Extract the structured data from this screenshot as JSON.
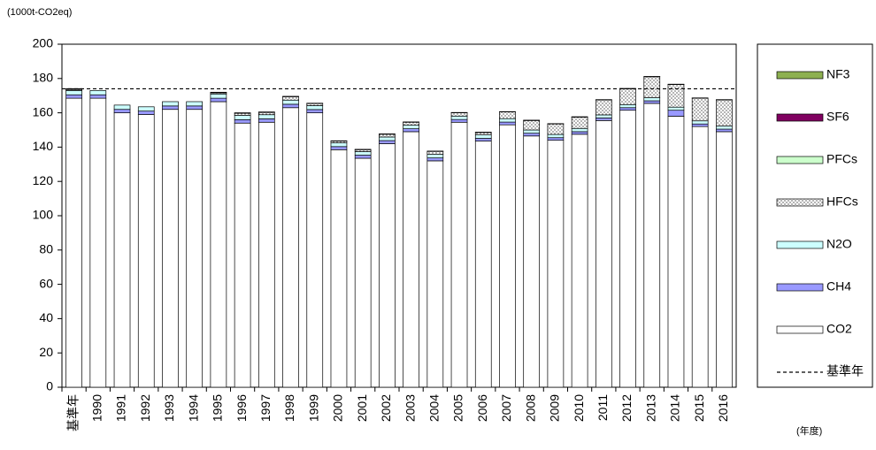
{
  "chart_data": {
    "type": "stacked_bar",
    "y_unit_label": "(1000t-CO2eq)",
    "x_unit_label": "(年度)",
    "categories": [
      "基準年",
      "1990",
      "1991",
      "1992",
      "1993",
      "1994",
      "1995",
      "1996",
      "1997",
      "1998",
      "1999",
      "2000",
      "2001",
      "2002",
      "2003",
      "2004",
      "2005",
      "2006",
      "2007",
      "2008",
      "2009",
      "2010",
      "2011",
      "2012",
      "2013",
      "2014",
      "2015",
      "2016"
    ],
    "series": [
      {
        "name": "CO2",
        "color": "#ffffff",
        "values": [
          168.5,
          168.5,
          160,
          159,
          162,
          162,
          166.5,
          154,
          154.5,
          163,
          160,
          138.5,
          133.5,
          142,
          149,
          132,
          154.5,
          143.5,
          153,
          146.5,
          144,
          147.5,
          155.5,
          161.5,
          165.5,
          158,
          152,
          149
        ]
      },
      {
        "name": "CH4",
        "color": "#9999ff",
        "values": [
          2,
          2,
          2,
          2,
          2,
          2,
          2,
          2,
          2,
          2,
          1.9,
          1.8,
          1.8,
          1.8,
          1.7,
          1.7,
          1.6,
          1.6,
          1.6,
          1.6,
          1.5,
          1.5,
          1.5,
          1.5,
          1.5,
          3.5,
          1.5,
          1.5
        ]
      },
      {
        "name": "N2O",
        "color": "#ccffff",
        "values": [
          2.5,
          2.5,
          2.5,
          2.5,
          2.5,
          2.5,
          2.5,
          2.5,
          2.4,
          2.4,
          2.3,
          2.2,
          2.1,
          2.1,
          2.1,
          2.1,
          2,
          2,
          2,
          1.9,
          1.9,
          1.9,
          1.8,
          1.8,
          1.8,
          1.8,
          1.8,
          1.8
        ]
      },
      {
        "name": "HFCs",
        "color": "#a0a0a0",
        "pattern": "dots",
        "values": [
          0.6,
          0,
          0,
          0,
          0,
          0,
          0.6,
          1.2,
          1.3,
          2,
          1.2,
          1,
          1.1,
          1.6,
          1.7,
          1.7,
          1.9,
          1.4,
          3.9,
          5.5,
          6.1,
          6.6,
          8.7,
          9.2,
          12.2,
          13.2,
          13.2,
          15.2
        ]
      },
      {
        "name": "PFCs",
        "color": "#ccffcc",
        "values": [
          0.3,
          0,
          0,
          0,
          0,
          0,
          0.3,
          0.2,
          0.2,
          0.1,
          0.1,
          0.1,
          0.1,
          0.1,
          0.1,
          0.1,
          0.1,
          0.1,
          0.1,
          0.1,
          0.1,
          0.1,
          0.1,
          0.1,
          0.1,
          0.1,
          0.1,
          0.1
        ]
      },
      {
        "name": "SF6",
        "color": "#800060",
        "values": [
          0.2,
          0,
          0,
          0,
          0,
          0,
          0.1,
          0.1,
          0.1,
          0.1,
          0.1,
          0.1,
          0.1,
          0.1,
          0.1,
          0.1,
          0.1,
          0.1,
          0.1,
          0.1,
          0.1,
          0.1,
          0.1,
          0.1,
          0.1,
          0.1,
          0.1,
          0.1
        ]
      },
      {
        "name": "NF3",
        "color": "#8db050",
        "values": [
          0,
          0,
          0,
          0,
          0,
          0,
          0,
          0,
          0,
          0,
          0,
          0,
          0,
          0,
          0,
          0,
          0,
          0,
          0,
          0,
          0,
          0,
          0,
          0,
          0,
          0,
          0,
          0
        ]
      }
    ],
    "reference_line": {
      "name": "基準年",
      "value": 174
    },
    "ylim": [
      0,
      200
    ],
    "yticks": [
      0,
      20,
      40,
      60,
      80,
      100,
      120,
      140,
      160,
      180,
      200
    ],
    "legend": "right"
  }
}
